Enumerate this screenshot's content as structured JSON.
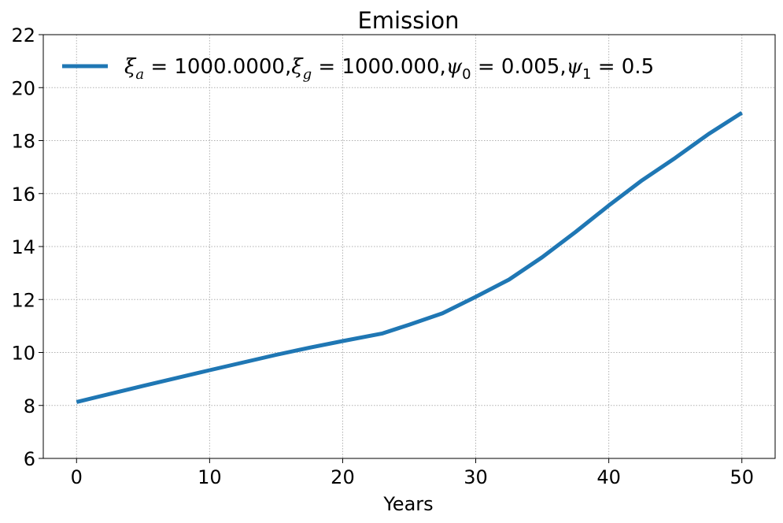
{
  "chart_data": {
    "type": "line",
    "title": "Emission",
    "xlabel": "Years",
    "ylabel": "",
    "xlim": [
      -2.5,
      52.5
    ],
    "ylim": [
      6,
      22
    ],
    "xticks": [
      0,
      10,
      20,
      30,
      40,
      50
    ],
    "yticks": [
      6,
      8,
      10,
      12,
      14,
      16,
      18,
      20,
      22
    ],
    "xtick_labels": [
      "0",
      "10",
      "20",
      "30",
      "40",
      "50"
    ],
    "ytick_labels": [
      "6",
      "8",
      "10",
      "12",
      "14",
      "16",
      "18",
      "20",
      "22"
    ],
    "grid": true,
    "legend_position": "top-left",
    "series": [
      {
        "name": "ξa = 1000.0000,ξg = 1000.000,ψ0 = 0.005,ψ1 = 0.5",
        "color": "#1f77b4",
        "x": [
          0,
          5,
          10,
          15,
          17.5,
          20,
          23,
          25,
          27.5,
          30,
          32.5,
          35,
          37.5,
          40,
          42.5,
          45,
          47.5,
          50
        ],
        "y": [
          8.13,
          8.74,
          9.33,
          9.91,
          10.18,
          10.43,
          10.72,
          11.05,
          11.48,
          12.1,
          12.75,
          13.6,
          14.55,
          15.55,
          16.5,
          17.35,
          18.25,
          19.05
        ]
      }
    ]
  },
  "legend": {
    "parts": [
      {
        "t": "ξ",
        "cls": "it"
      },
      {
        "t": "a",
        "cls": "it sub",
        "sub": true
      },
      {
        "t": " = 1000.0000,",
        "cls": ""
      },
      {
        "t": "ξ",
        "cls": "it"
      },
      {
        "t": "g",
        "cls": "it sub",
        "sub": true
      },
      {
        "t": " = 1000.000,",
        "cls": ""
      },
      {
        "t": "ψ",
        "cls": "it"
      },
      {
        "t": "0",
        "cls": "sub",
        "sub": true
      },
      {
        "t": " = 0.005,",
        "cls": ""
      },
      {
        "t": "ψ",
        "cls": "it"
      },
      {
        "t": "1",
        "cls": "sub",
        "sub": true
      },
      {
        "t": " = 0.5",
        "cls": ""
      }
    ]
  }
}
